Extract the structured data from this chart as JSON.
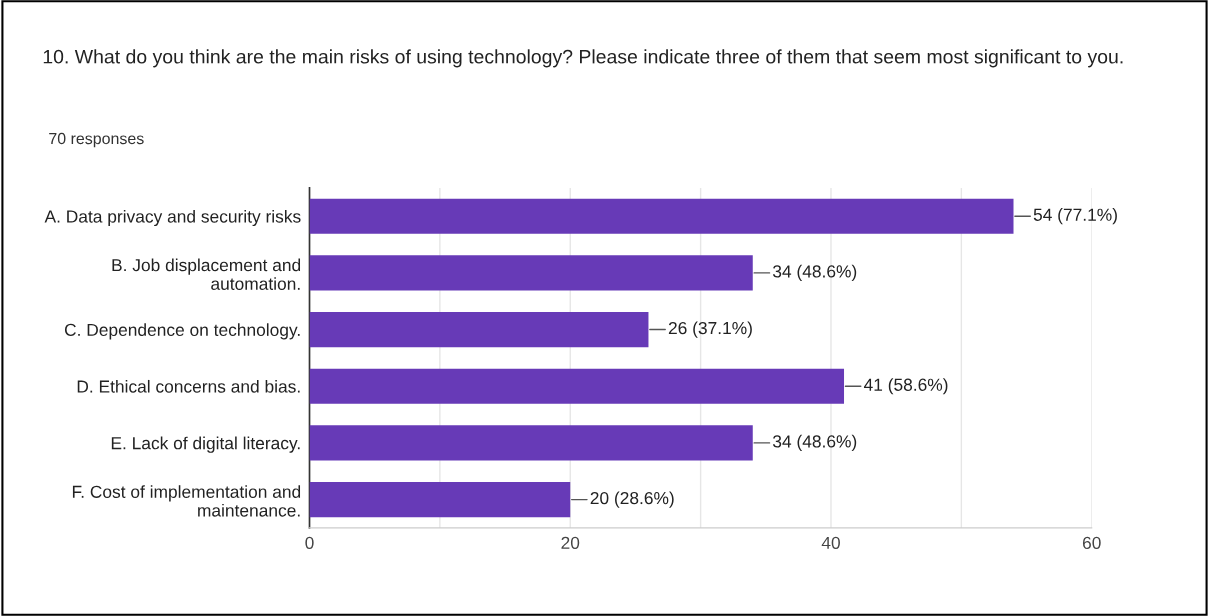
{
  "chart_data": {
    "type": "bar",
    "orientation": "horizontal",
    "title": "10. What do you think are the main risks of using technology? Please indicate three of them that seem most significant to you.",
    "subtitle": "70 responses",
    "categories": [
      "A. Data privacy and security risks",
      "B. Job displacement and\nautomation.",
      "C. Dependence on technology.",
      "D. Ethical concerns and bias.",
      "E. Lack of digital literacy.",
      "F. Cost of implementation and\nmaintenance."
    ],
    "values": [
      54,
      34,
      26,
      41,
      34,
      20
    ],
    "value_labels": [
      "54 (77.1%)",
      "34 (48.6%)",
      "26 (37.1%)",
      "41 (58.6%)",
      "34 (48.6%)",
      "20 (28.6%)"
    ],
    "color": "#673ab7",
    "xlim": [
      0,
      60
    ],
    "xticks": [
      0,
      {
        "value": 10,
        "label": null
      },
      20,
      {
        "value": 30,
        "label": null
      },
      40,
      {
        "value": 50,
        "label": null
      },
      60
    ],
    "grid": "x",
    "legend": false
  }
}
